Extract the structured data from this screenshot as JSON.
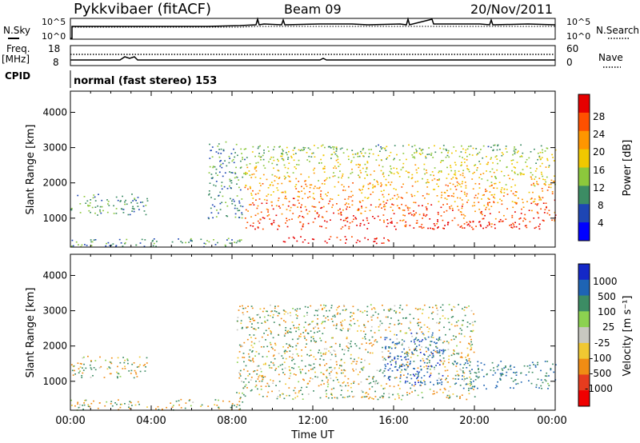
{
  "header": {
    "station": "Pykkvibaer (fitACF)",
    "beam": "Beam 09",
    "date": "20/Nov/2011"
  },
  "strip_labels": {
    "nsky": "N.Sky",
    "nsearch": "N.Search",
    "freq": "Freq.",
    "freq_unit": "[MHz]",
    "nave": "Nave",
    "cpid": "CPID",
    "cpid_value": "normal (fast stereo) 153"
  },
  "noise_axis": {
    "left_ticks": [
      "10^5",
      "10^0"
    ],
    "right_ticks": [
      "10^5",
      "10^0"
    ]
  },
  "freq_axis": {
    "left_ticks": [
      "18",
      "8"
    ],
    "right_ticks": [
      "60",
      "0"
    ]
  },
  "axes": {
    "y_label": "Slant Range [km]",
    "y_ticks": [
      "4000",
      "3000",
      "2000",
      "1000"
    ],
    "x_label": "Time UT",
    "x_ticks": [
      "00:00",
      "04:00",
      "08:00",
      "12:00",
      "16:00",
      "20:00",
      "00:00"
    ]
  },
  "colorbars": {
    "power": {
      "label": "Power [dB]",
      "ticks": [
        "28",
        "24",
        "20",
        "16",
        "12",
        "8",
        "4"
      ],
      "colors": [
        "#e60000",
        "#ff5000",
        "#ff9600",
        "#f0c800",
        "#8cc83c",
        "#3c8c64",
        "#1e46b4",
        "#0000ff"
      ]
    },
    "velocity": {
      "label": "Velocity [m s⁻¹]",
      "ticks": [
        "1000",
        "500",
        "100",
        "25",
        "-25",
        "-100",
        "-500",
        "-1000"
      ],
      "colors": [
        "#1428c8",
        "#1e64b4",
        "#3c8c64",
        "#8cd250",
        "#c8c8c0",
        "#f0c832",
        "#f08c14",
        "#e63c1e",
        "#f00000"
      ]
    }
  },
  "chart_data": [
    {
      "type": "heatmap",
      "quantity": "Power",
      "x_range_ut_hours": [
        0,
        24
      ],
      "ylim_km": [
        180,
        4600
      ],
      "color_scale": [
        0,
        30
      ],
      "regions": [
        {
          "t0": 0.0,
          "t1": 3.8,
          "r0": 1100,
          "r1": 1700,
          "level": 8
        },
        {
          "t0": 0.0,
          "t1": 8.5,
          "r0": 200,
          "r1": 450,
          "level": 8
        },
        {
          "t0": 6.8,
          "t1": 8.6,
          "r0": 1000,
          "r1": 3200,
          "level": 8
        },
        {
          "t0": 8.6,
          "t1": 24.0,
          "r0": 700,
          "r1": 3100,
          "level": 26
        },
        {
          "t0": 10.5,
          "t1": 16.0,
          "r0": 300,
          "r1": 500,
          "level": 24
        }
      ]
    },
    {
      "type": "heatmap",
      "quantity": "Velocity",
      "x_range_ut_hours": [
        0,
        24
      ],
      "ylim_km": [
        180,
        4600
      ],
      "color_scale": [
        -1000,
        1000
      ],
      "regions": [
        {
          "t0": 0.0,
          "t1": 3.8,
          "r0": 1100,
          "r1": 1750,
          "level": 0
        },
        {
          "t0": 0.0,
          "t1": 8.5,
          "r0": 200,
          "r1": 500,
          "level": -30
        },
        {
          "t0": 8.2,
          "t1": 20.0,
          "r0": 500,
          "r1": 3200,
          "level": 0
        },
        {
          "t0": 15.5,
          "t1": 18.5,
          "r0": 900,
          "r1": 2400,
          "level": 600
        },
        {
          "t0": 19.0,
          "t1": 24.0,
          "r0": 800,
          "r1": 1600,
          "level": 300
        }
      ]
    }
  ]
}
